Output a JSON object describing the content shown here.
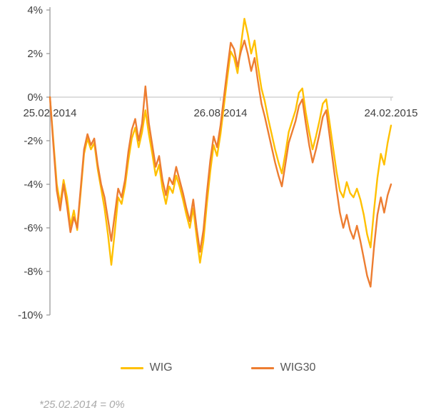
{
  "footnote": "*25.02.2014 = 0%",
  "chart_data": {
    "type": "line",
    "title": "",
    "x_axis": {
      "labels": [
        "25.02.2014",
        "26.08.2014",
        "24.02.2015"
      ],
      "positions": [
        0,
        0.5,
        1
      ]
    },
    "y_axis": {
      "ticks": [
        4,
        2,
        0,
        -2,
        -4,
        -6,
        -8,
        -10
      ],
      "labels": [
        "4%",
        "2%",
        "0%",
        "-2%",
        "-4%",
        "-6%",
        "-8%",
        "-10%"
      ],
      "range": [
        -10,
        4
      ]
    },
    "legend_position": "bottom",
    "grid": "zero-line-only",
    "series": [
      {
        "name": "WIG",
        "color": "#FFC000",
        "values": [
          0.0,
          -2.0,
          -4.0,
          -4.9,
          -3.8,
          -4.6,
          -5.9,
          -5.2,
          -6.1,
          -4.4,
          -2.6,
          -1.9,
          -2.4,
          -2.1,
          -3.3,
          -4.2,
          -5.1,
          -6.3,
          -7.7,
          -6.2,
          -4.6,
          -4.9,
          -4.1,
          -2.9,
          -1.9,
          -1.4,
          -2.3,
          -1.6,
          -0.6,
          -1.7,
          -2.6,
          -3.6,
          -3.1,
          -4.2,
          -4.9,
          -4.1,
          -4.4,
          -3.6,
          -4.1,
          -4.7,
          -5.4,
          -6.0,
          -5.1,
          -6.4,
          -7.6,
          -6.6,
          -4.9,
          -3.4,
          -2.2,
          -2.7,
          -1.7,
          -0.4,
          0.9,
          2.1,
          1.8,
          1.1,
          2.4,
          3.6,
          2.9,
          2.0,
          2.6,
          1.4,
          0.4,
          -0.2,
          -1.0,
          -1.7,
          -2.4,
          -3.0,
          -3.5,
          -2.6,
          -1.6,
          -1.1,
          -0.6,
          0.2,
          0.4,
          -0.7,
          -1.6,
          -2.4,
          -1.8,
          -1.1,
          -0.3,
          -0.1,
          -1.2,
          -2.3,
          -3.4,
          -4.3,
          -4.6,
          -3.9,
          -4.4,
          -4.6,
          -4.2,
          -4.7,
          -5.4,
          -6.3,
          -6.9,
          -5.2,
          -3.7,
          -2.6,
          -3.1,
          -2.1,
          -1.3
        ]
      },
      {
        "name": "WIG30",
        "color": "#ED7D31",
        "values": [
          0.0,
          -2.2,
          -4.3,
          -5.2,
          -4.0,
          -5.0,
          -6.2,
          -5.5,
          -6.0,
          -4.2,
          -2.4,
          -1.7,
          -2.2,
          -1.9,
          -3.1,
          -4.0,
          -4.6,
          -5.6,
          -6.6,
          -5.4,
          -4.2,
          -4.6,
          -3.8,
          -2.5,
          -1.5,
          -1.0,
          -2.0,
          -1.2,
          0.5,
          -1.2,
          -2.2,
          -3.2,
          -2.7,
          -3.8,
          -4.5,
          -3.7,
          -4.0,
          -3.2,
          -3.8,
          -4.4,
          -5.1,
          -5.7,
          -4.7,
          -6.0,
          -7.1,
          -6.1,
          -4.4,
          -2.9,
          -1.8,
          -2.3,
          -1.3,
          0.0,
          1.3,
          2.5,
          2.2,
          1.4,
          2.1,
          2.6,
          2.0,
          1.2,
          1.8,
          0.7,
          -0.3,
          -0.9,
          -1.6,
          -2.3,
          -3.0,
          -3.6,
          -4.1,
          -3.1,
          -2.1,
          -1.6,
          -1.1,
          -0.4,
          -0.1,
          -1.2,
          -2.2,
          -3.0,
          -2.4,
          -1.7,
          -0.9,
          -0.6,
          -1.8,
          -3.0,
          -4.2,
          -5.3,
          -6.0,
          -5.4,
          -6.1,
          -6.5,
          -5.9,
          -6.6,
          -7.4,
          -8.2,
          -8.7,
          -6.9,
          -5.4,
          -4.6,
          -5.3,
          -4.5,
          -4.0
        ]
      }
    ],
    "axis_colors": {
      "y_axis_line": "#9b9b9b",
      "zero_line": "#c9c9c9",
      "tick_label": "#404040"
    }
  }
}
